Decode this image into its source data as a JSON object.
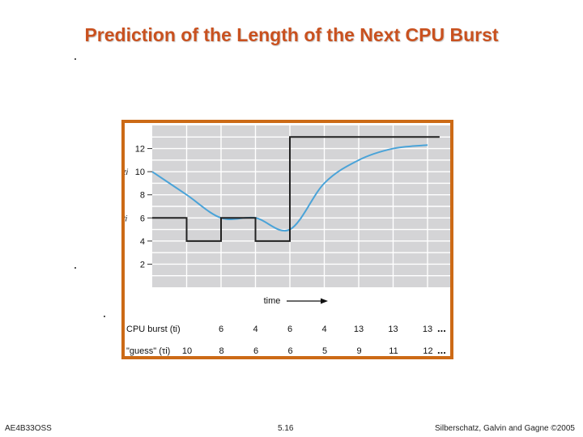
{
  "slide": {
    "title": "Prediction of the Length of the Next CPU Burst",
    "footer_left": "AE4B33OSS",
    "footer_center": "5.16",
    "footer_right": "Silberschatz, Galvin and Gagne ©2005"
  },
  "colors": {
    "title": "#c9511f",
    "frame": "#cc6a16",
    "plot_bg": "#d4d4d6",
    "grid": "#ffffff",
    "burst_line": "#222222",
    "guess_line": "#4aa3d8"
  },
  "chart_data": {
    "type": "line",
    "xlabel": "time",
    "ylim": [
      0,
      14
    ],
    "yticks": [
      2,
      4,
      6,
      8,
      10,
      12
    ],
    "ytick_labels": [
      "2",
      "4",
      "6",
      "8",
      "10",
      "12"
    ],
    "y_marker_labels": [
      {
        "text": "τi",
        "y": 10
      },
      {
        "text": "ti",
        "y": 6
      }
    ],
    "grid": true,
    "series": [
      {
        "name": "CPU burst (ti)",
        "style": "step",
        "x": [
          0,
          1,
          2,
          3,
          4,
          5,
          6,
          7,
          8
        ],
        "values": [
          6,
          4,
          6,
          4,
          13,
          13,
          13,
          13,
          13
        ]
      },
      {
        "name": "guess (τi)",
        "style": "smooth",
        "x": [
          0,
          1,
          2,
          3,
          4,
          5,
          6,
          7,
          8
        ],
        "values": [
          10,
          8,
          6,
          6,
          5,
          9,
          11,
          12,
          12.3
        ]
      }
    ],
    "table": {
      "rows": [
        {
          "label": "CPU burst (ti)",
          "values": [
            "6",
            "4",
            "6",
            "4",
            "13",
            "13",
            "13"
          ],
          "ellipsis": "..."
        },
        {
          "label": "\"guess\" (τi)",
          "values": [
            "10",
            "8",
            "6",
            "6",
            "5",
            "9",
            "11",
            "12"
          ],
          "ellipsis": "..."
        }
      ]
    }
  }
}
